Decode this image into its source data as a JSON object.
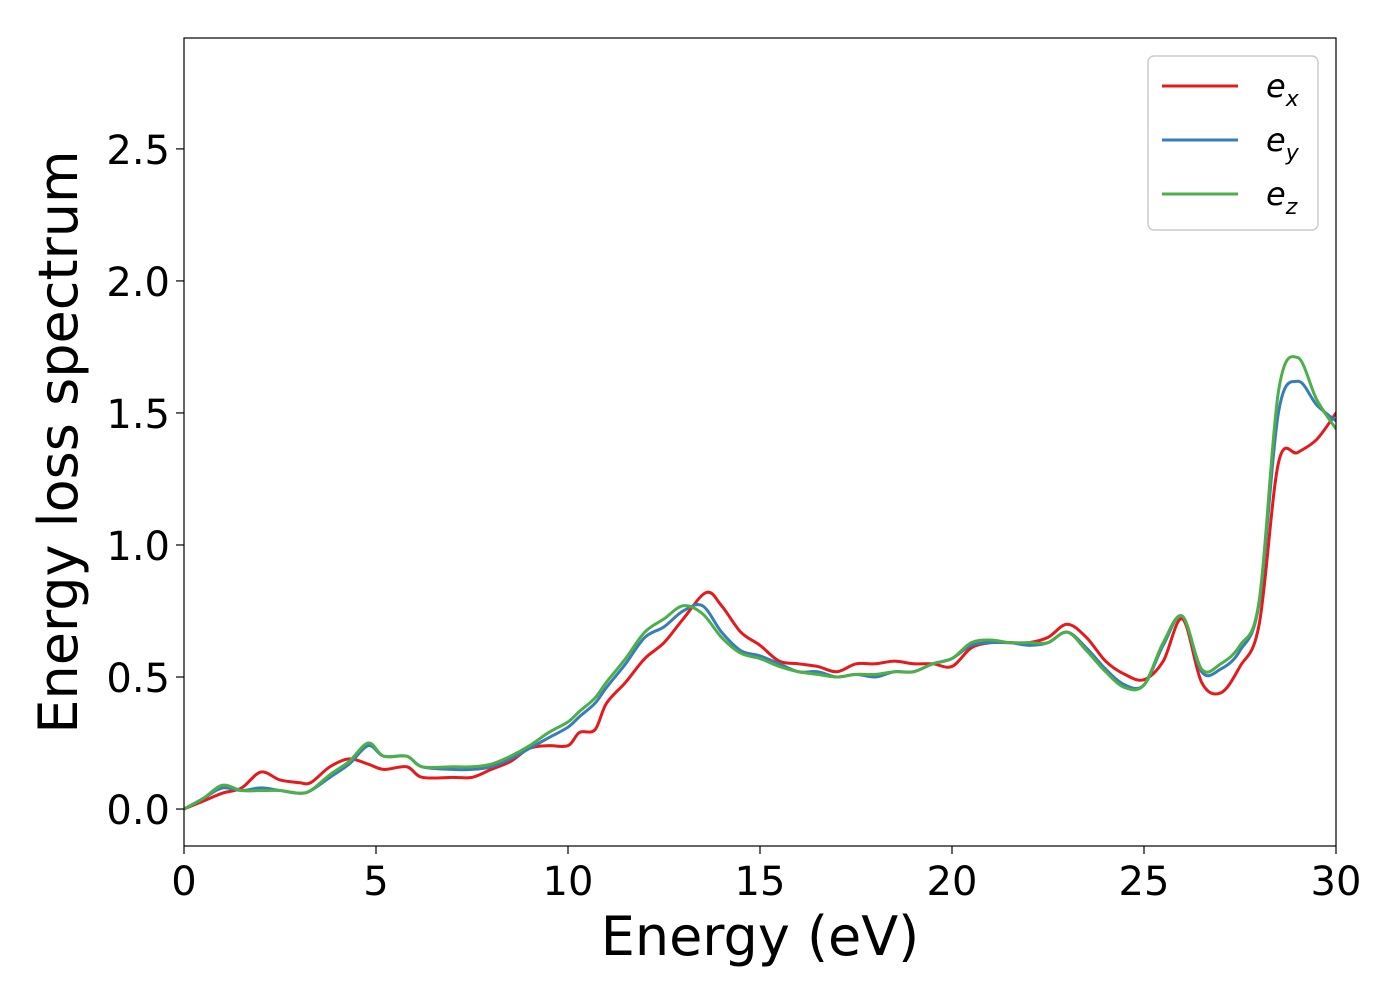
{
  "chart_data": {
    "type": "line",
    "xlabel": "Energy (eV)",
    "ylabel": "Energy loss spectrum",
    "xlim": [
      0,
      30
    ],
    "ylim": [
      -0.14,
      2.92
    ],
    "xticks": [
      0,
      5,
      10,
      15,
      20,
      25,
      30
    ],
    "xtick_labels": [
      "0",
      "5",
      "10",
      "15",
      "20",
      "25",
      "30"
    ],
    "yticks": [
      0.0,
      0.5,
      1.0,
      1.5,
      2.0,
      2.5
    ],
    "ytick_labels": [
      "0.0",
      "0.5",
      "1.0",
      "1.5",
      "2.0",
      "2.5"
    ],
    "grid": false,
    "legend_position": "top-right",
    "series": [
      {
        "name": "e_x",
        "legend_base": "e",
        "legend_sub": "x",
        "color": "#e41a1c",
        "points": [
          [
            0,
            0.0
          ],
          [
            0.5,
            0.03
          ],
          [
            1.0,
            0.06
          ],
          [
            1.5,
            0.08
          ],
          [
            2.0,
            0.14
          ],
          [
            2.5,
            0.11
          ],
          [
            3.0,
            0.1
          ],
          [
            3.3,
            0.1
          ],
          [
            3.8,
            0.16
          ],
          [
            4.3,
            0.19
          ],
          [
            4.8,
            0.17
          ],
          [
            5.2,
            0.15
          ],
          [
            5.8,
            0.16
          ],
          [
            6.2,
            0.12
          ],
          [
            7.0,
            0.12
          ],
          [
            7.5,
            0.12
          ],
          [
            8.0,
            0.15
          ],
          [
            8.5,
            0.18
          ],
          [
            9.0,
            0.23
          ],
          [
            9.5,
            0.24
          ],
          [
            10.0,
            0.24
          ],
          [
            10.3,
            0.29
          ],
          [
            10.7,
            0.3
          ],
          [
            11.0,
            0.4
          ],
          [
            11.5,
            0.48
          ],
          [
            12.0,
            0.57
          ],
          [
            12.5,
            0.63
          ],
          [
            13.0,
            0.72
          ],
          [
            13.6,
            0.82
          ],
          [
            14.0,
            0.77
          ],
          [
            14.5,
            0.67
          ],
          [
            15.0,
            0.62
          ],
          [
            15.5,
            0.56
          ],
          [
            16.0,
            0.55
          ],
          [
            16.5,
            0.54
          ],
          [
            17.0,
            0.52
          ],
          [
            17.5,
            0.55
          ],
          [
            18.0,
            0.55
          ],
          [
            18.5,
            0.56
          ],
          [
            19.0,
            0.55
          ],
          [
            19.5,
            0.55
          ],
          [
            20.0,
            0.54
          ],
          [
            20.5,
            0.61
          ],
          [
            21.0,
            0.63
          ],
          [
            21.5,
            0.63
          ],
          [
            22.0,
            0.63
          ],
          [
            22.5,
            0.65
          ],
          [
            23.0,
            0.7
          ],
          [
            23.5,
            0.65
          ],
          [
            24.0,
            0.56
          ],
          [
            24.5,
            0.51
          ],
          [
            25.0,
            0.49
          ],
          [
            25.5,
            0.56
          ],
          [
            26.0,
            0.72
          ],
          [
            26.5,
            0.48
          ],
          [
            27.0,
            0.44
          ],
          [
            27.5,
            0.54
          ],
          [
            28.0,
            0.7
          ],
          [
            28.5,
            1.31
          ],
          [
            29.0,
            1.35
          ],
          [
            29.5,
            1.4
          ],
          [
            30.0,
            1.5
          ]
        ]
      },
      {
        "name": "e_y",
        "legend_base": "e",
        "legend_sub": "y",
        "color": "#377eb8",
        "points": [
          [
            0,
            0.0
          ],
          [
            0.5,
            0.04
          ],
          [
            1.0,
            0.08
          ],
          [
            1.5,
            0.07
          ],
          [
            2.0,
            0.08
          ],
          [
            2.5,
            0.07
          ],
          [
            3.0,
            0.06
          ],
          [
            3.3,
            0.07
          ],
          [
            3.8,
            0.12
          ],
          [
            4.3,
            0.17
          ],
          [
            4.8,
            0.24
          ],
          [
            5.2,
            0.2
          ],
          [
            5.8,
            0.2
          ],
          [
            6.2,
            0.16
          ],
          [
            7.0,
            0.15
          ],
          [
            7.5,
            0.15
          ],
          [
            8.0,
            0.16
          ],
          [
            8.5,
            0.19
          ],
          [
            9.0,
            0.23
          ],
          [
            9.5,
            0.27
          ],
          [
            10.0,
            0.31
          ],
          [
            10.3,
            0.35
          ],
          [
            10.7,
            0.4
          ],
          [
            11.0,
            0.46
          ],
          [
            11.5,
            0.55
          ],
          [
            12.0,
            0.65
          ],
          [
            12.5,
            0.69
          ],
          [
            13.0,
            0.75
          ],
          [
            13.5,
            0.77
          ],
          [
            14.0,
            0.67
          ],
          [
            14.5,
            0.6
          ],
          [
            15.0,
            0.58
          ],
          [
            15.5,
            0.55
          ],
          [
            16.0,
            0.52
          ],
          [
            16.5,
            0.52
          ],
          [
            17.0,
            0.5
          ],
          [
            17.5,
            0.51
          ],
          [
            18.0,
            0.5
          ],
          [
            18.5,
            0.52
          ],
          [
            19.0,
            0.52
          ],
          [
            19.5,
            0.55
          ],
          [
            20.0,
            0.57
          ],
          [
            20.5,
            0.62
          ],
          [
            21.0,
            0.63
          ],
          [
            21.5,
            0.63
          ],
          [
            22.0,
            0.62
          ],
          [
            22.5,
            0.63
          ],
          [
            23.0,
            0.67
          ],
          [
            23.5,
            0.61
          ],
          [
            24.0,
            0.53
          ],
          [
            24.5,
            0.47
          ],
          [
            25.0,
            0.47
          ],
          [
            25.5,
            0.62
          ],
          [
            26.0,
            0.73
          ],
          [
            26.5,
            0.52
          ],
          [
            27.0,
            0.53
          ],
          [
            27.5,
            0.6
          ],
          [
            28.0,
            0.78
          ],
          [
            28.5,
            1.5
          ],
          [
            29.0,
            1.62
          ],
          [
            29.5,
            1.53
          ],
          [
            30.0,
            1.47
          ]
        ]
      },
      {
        "name": "e_z",
        "legend_base": "e",
        "legend_sub": "z",
        "color": "#4daf4a",
        "points": [
          [
            0,
            0.0
          ],
          [
            0.5,
            0.04
          ],
          [
            1.0,
            0.09
          ],
          [
            1.5,
            0.07
          ],
          [
            2.0,
            0.07
          ],
          [
            2.5,
            0.07
          ],
          [
            3.0,
            0.06
          ],
          [
            3.3,
            0.07
          ],
          [
            3.8,
            0.13
          ],
          [
            4.3,
            0.18
          ],
          [
            4.8,
            0.25
          ],
          [
            5.2,
            0.2
          ],
          [
            5.8,
            0.2
          ],
          [
            6.2,
            0.16
          ],
          [
            7.0,
            0.16
          ],
          [
            7.5,
            0.16
          ],
          [
            8.0,
            0.17
          ],
          [
            8.5,
            0.2
          ],
          [
            9.0,
            0.24
          ],
          [
            9.5,
            0.29
          ],
          [
            10.0,
            0.33
          ],
          [
            10.3,
            0.37
          ],
          [
            10.7,
            0.42
          ],
          [
            11.0,
            0.48
          ],
          [
            11.5,
            0.57
          ],
          [
            12.0,
            0.67
          ],
          [
            12.5,
            0.72
          ],
          [
            13.0,
            0.77
          ],
          [
            13.5,
            0.74
          ],
          [
            14.0,
            0.65
          ],
          [
            14.5,
            0.59
          ],
          [
            15.0,
            0.57
          ],
          [
            15.5,
            0.54
          ],
          [
            16.0,
            0.52
          ],
          [
            16.5,
            0.51
          ],
          [
            17.0,
            0.5
          ],
          [
            17.5,
            0.51
          ],
          [
            18.0,
            0.51
          ],
          [
            18.5,
            0.52
          ],
          [
            19.0,
            0.52
          ],
          [
            19.5,
            0.55
          ],
          [
            20.0,
            0.57
          ],
          [
            20.5,
            0.63
          ],
          [
            21.0,
            0.64
          ],
          [
            21.5,
            0.63
          ],
          [
            22.0,
            0.63
          ],
          [
            22.5,
            0.63
          ],
          [
            23.0,
            0.67
          ],
          [
            23.5,
            0.6
          ],
          [
            24.0,
            0.52
          ],
          [
            24.5,
            0.46
          ],
          [
            25.0,
            0.47
          ],
          [
            25.5,
            0.63
          ],
          [
            26.0,
            0.73
          ],
          [
            26.5,
            0.53
          ],
          [
            27.0,
            0.55
          ],
          [
            27.5,
            0.62
          ],
          [
            28.0,
            0.79
          ],
          [
            28.5,
            1.58
          ],
          [
            29.0,
            1.71
          ],
          [
            29.5,
            1.55
          ],
          [
            30.0,
            1.44
          ]
        ]
      }
    ]
  }
}
